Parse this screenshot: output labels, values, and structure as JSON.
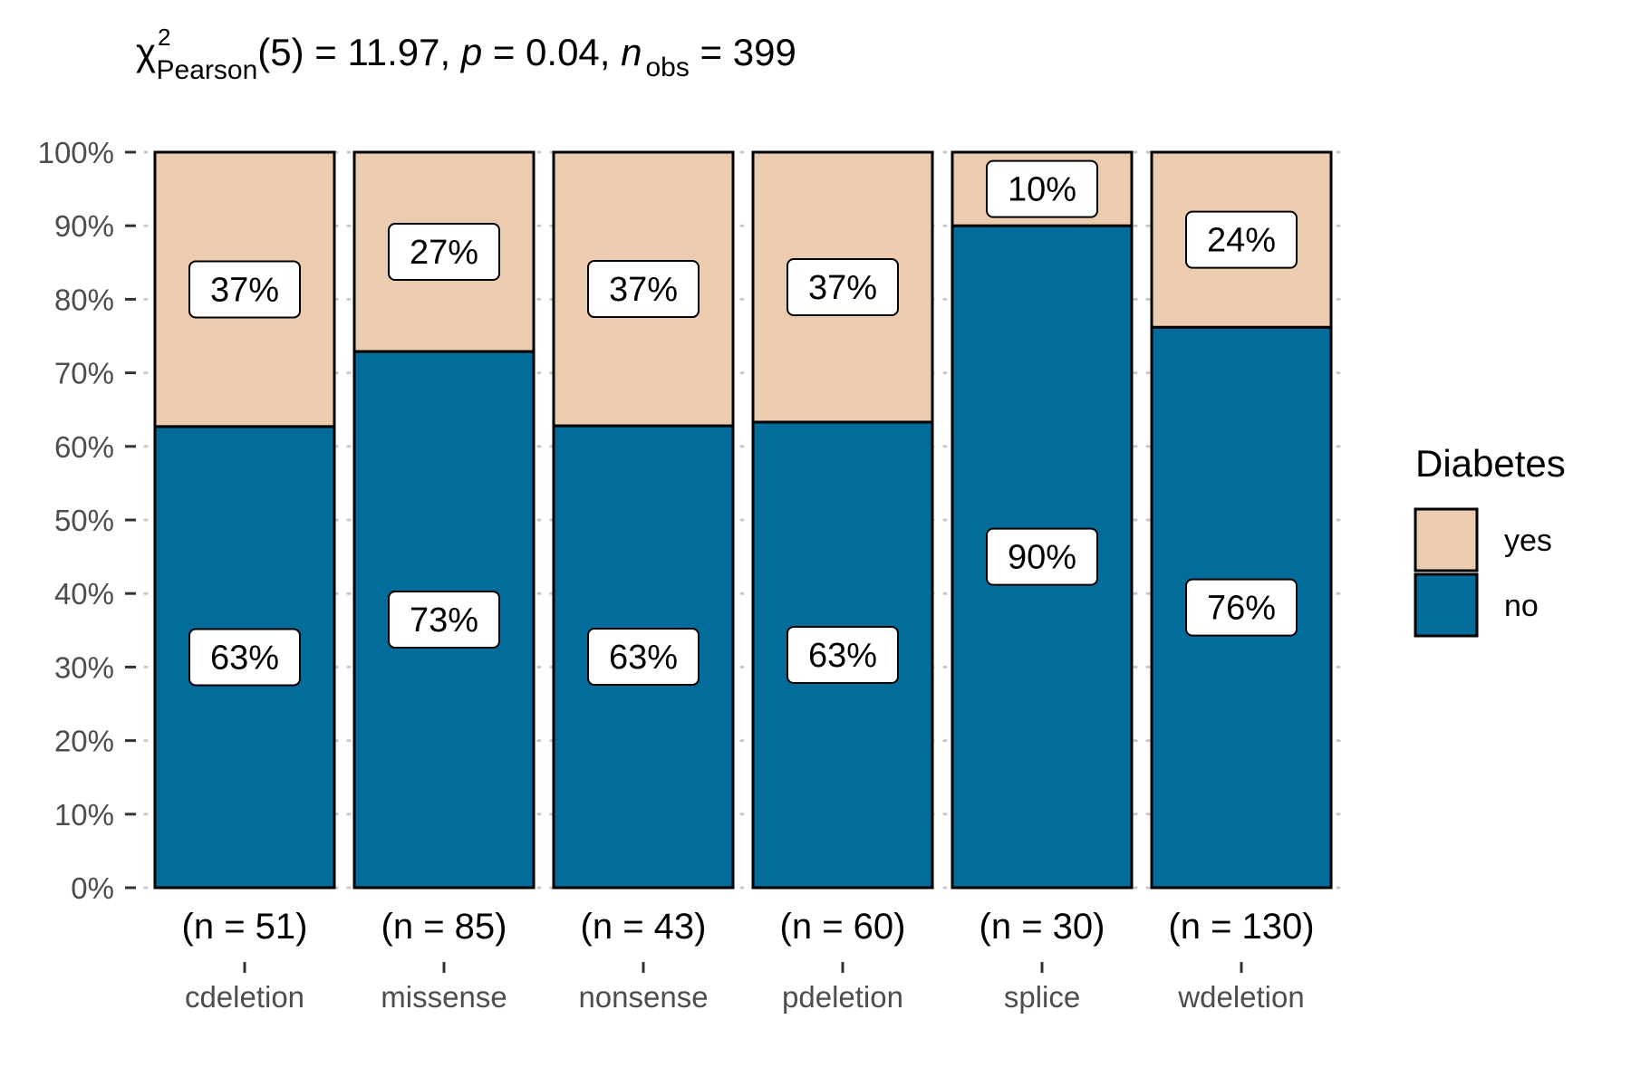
{
  "chart_data": {
    "type": "bar",
    "stacked": true,
    "percent": true,
    "subtitle": {
      "chi": "χ",
      "chi_sup": "2",
      "chi_sub": "Pearson",
      "df": "(5)",
      "stat_text": " = 11.97, ",
      "p_symbol": "p",
      "p_text": " = 0.04, ",
      "n_symbol": "n",
      "n_sub": "obs",
      "n_text": " = 399"
    },
    "categories": [
      "cdeletion",
      "missense",
      "nonsense",
      "pdeletion",
      "splice",
      "wdeletion"
    ],
    "counts": [
      "(n = 51)",
      "(n = 85)",
      "(n = 43)",
      "(n = 60)",
      "(n = 30)",
      "(n = 130)"
    ],
    "series": [
      {
        "name": "no",
        "color": "#046C9A",
        "values": [
          62.7,
          72.9,
          62.8,
          63.3,
          90.0,
          76.2
        ],
        "labels": [
          "63%",
          "73%",
          "63%",
          "63%",
          "90%",
          "76%"
        ]
      },
      {
        "name": "yes",
        "color": "#ECCBAE",
        "values": [
          37.3,
          27.1,
          37.2,
          36.7,
          10.0,
          23.8
        ],
        "labels": [
          "37%",
          "27%",
          "37%",
          "37%",
          "10%",
          "24%"
        ]
      }
    ],
    "ylim": [
      0,
      100
    ],
    "yticks": [
      "0%",
      "10%",
      "20%",
      "30%",
      "40%",
      "50%",
      "60%",
      "70%",
      "80%",
      "90%",
      "100%"
    ],
    "grid": "dotted-horizontal",
    "legend": {
      "title": "Diabetes",
      "placement": "right",
      "entries": [
        {
          "label": "yes",
          "color": "#ECCBAE"
        },
        {
          "label": "no",
          "color": "#046C9A"
        }
      ]
    }
  }
}
